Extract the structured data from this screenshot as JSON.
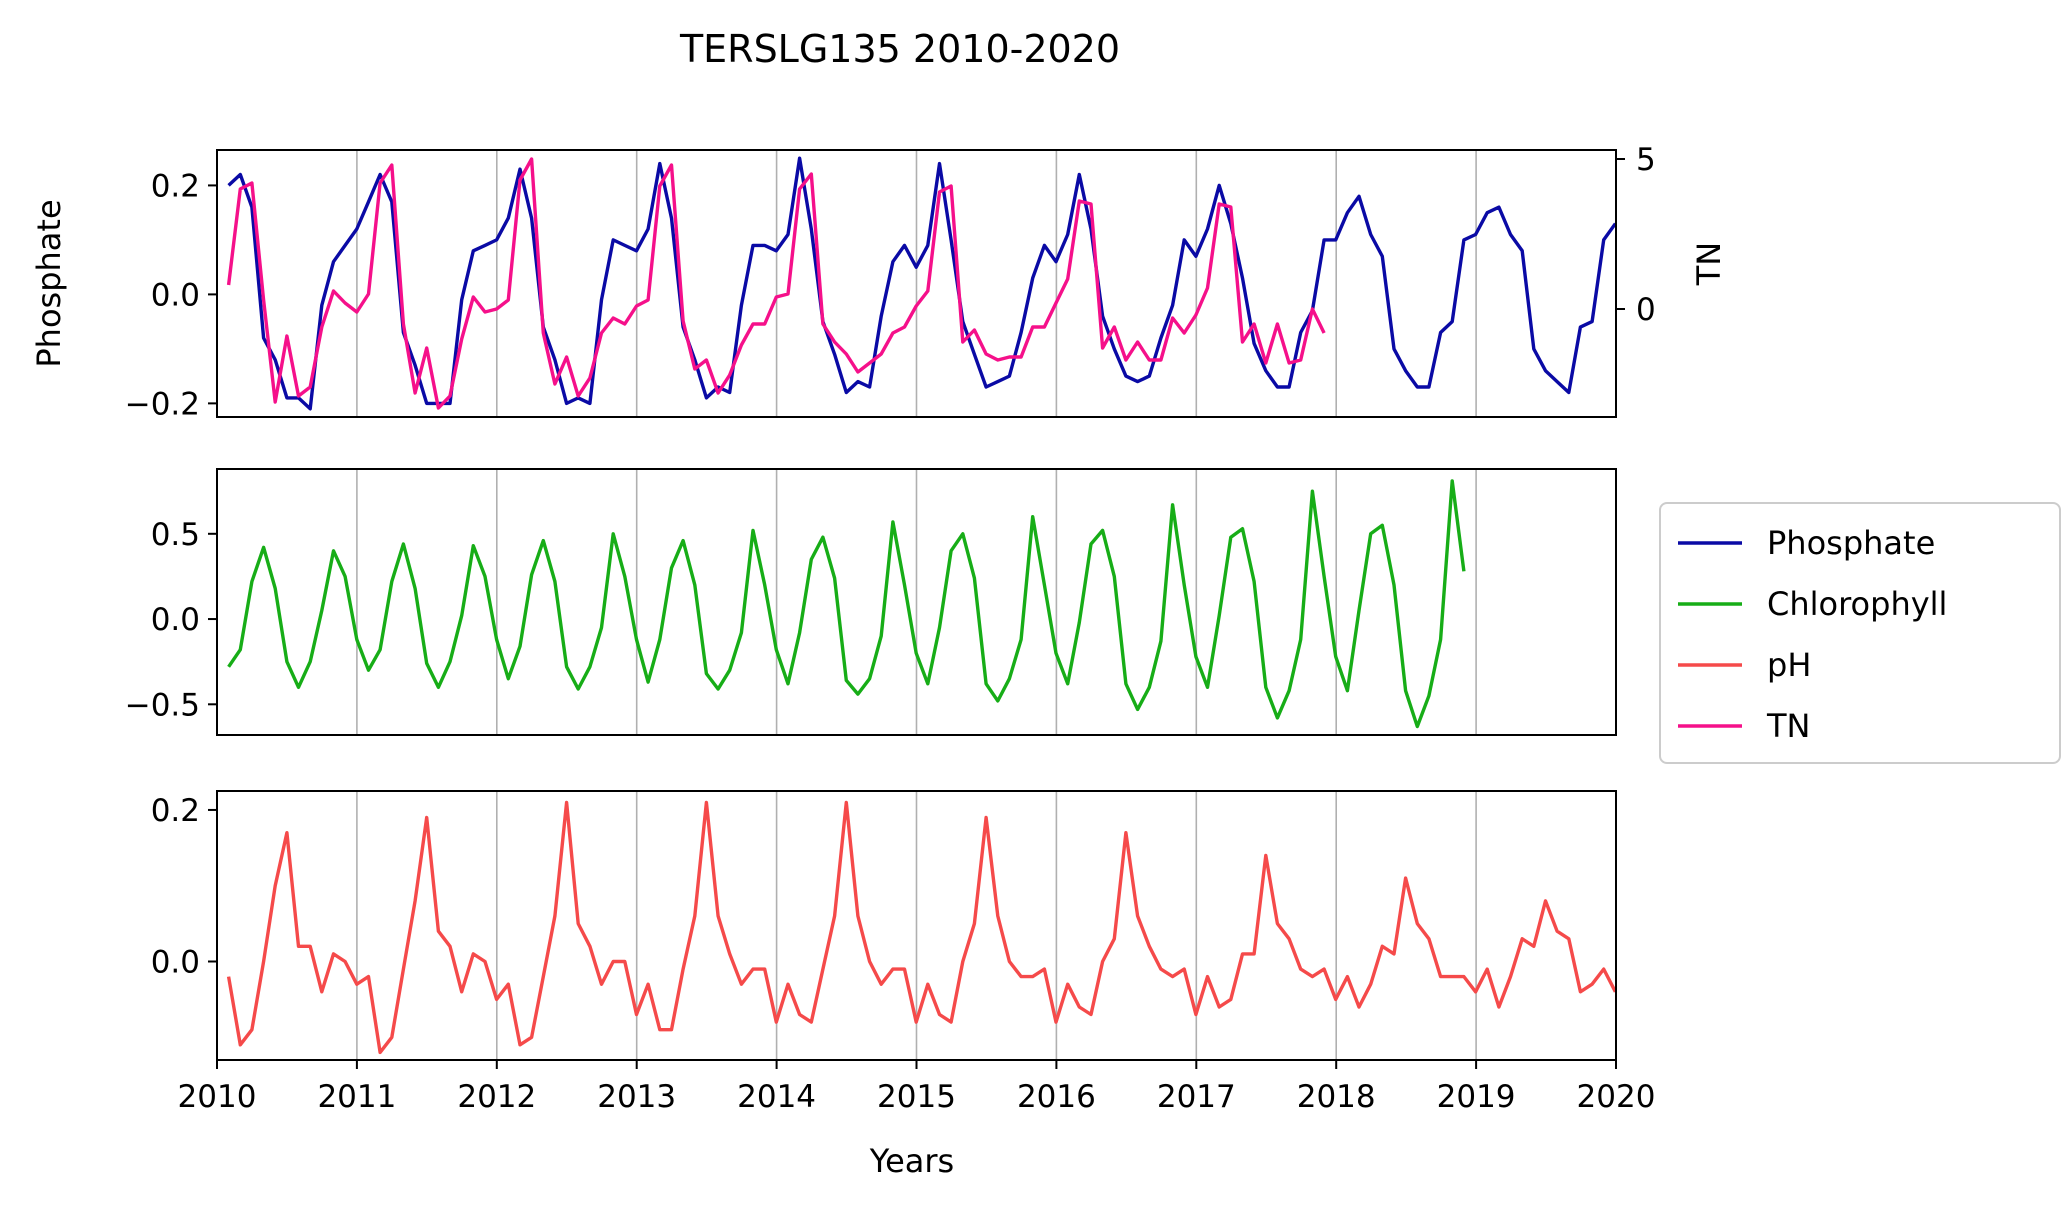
{
  "chart_data": {
    "type": "line",
    "title": "TERSLG135 2010-2020",
    "xlabel": "Years",
    "xlim": [
      2010,
      2020
    ],
    "x_ticks": [
      "2010",
      "2011",
      "2012",
      "2013",
      "2014",
      "2015",
      "2016",
      "2017",
      "2018",
      "2019",
      "2020"
    ],
    "legend": {
      "placement": "right",
      "entries": [
        {
          "label": "Phosphate",
          "color": "#0a0aa5"
        },
        {
          "label": "Chlorophyll",
          "color": "#17ad17"
        },
        {
          "label": "pH",
          "color": "#f54a4a"
        },
        {
          "label": "TN",
          "color": "#f5108a"
        }
      ]
    },
    "panels": [
      {
        "ylabel": "Phosphate",
        "ylim": [
          -0.225,
          0.265
        ],
        "yticks": [
          {
            "v": 0.2,
            "label": "0.2"
          },
          {
            "v": 0.0,
            "label": "0.0"
          },
          {
            "v": -0.2,
            "label": "−0.2"
          }
        ],
        "grid_x": true,
        "secondary_axis": {
          "ylabel": "TN",
          "ylim": [
            -3.6,
            5.3
          ],
          "yticks": [
            {
              "v": 5,
              "label": "5"
            },
            {
              "v": 0,
              "label": "0"
            }
          ]
        },
        "series": [
          {
            "name": "Phosphate",
            "color": "#0a0aa5",
            "axis": "left",
            "x_start": 2010.083,
            "x_step": 0.0833,
            "values": [
              0.2,
              0.22,
              0.16,
              -0.08,
              -0.12,
              -0.19,
              -0.19,
              -0.21,
              -0.02,
              0.06,
              0.09,
              0.12,
              0.17,
              0.22,
              0.17,
              -0.07,
              -0.13,
              -0.2,
              -0.2,
              -0.2,
              -0.01,
              0.08,
              0.09,
              0.1,
              0.14,
              0.23,
              0.14,
              -0.06,
              -0.12,
              -0.2,
              -0.19,
              -0.2,
              -0.01,
              0.1,
              0.09,
              0.08,
              0.12,
              0.24,
              0.14,
              -0.06,
              -0.12,
              -0.19,
              -0.17,
              -0.18,
              -0.02,
              0.09,
              0.09,
              0.08,
              0.11,
              0.25,
              0.12,
              -0.05,
              -0.11,
              -0.18,
              -0.16,
              -0.17,
              -0.04,
              0.06,
              0.09,
              0.05,
              0.09,
              0.24,
              0.1,
              -0.05,
              -0.11,
              -0.17,
              -0.16,
              -0.15,
              -0.07,
              0.03,
              0.09,
              0.06,
              0.11,
              0.22,
              0.12,
              -0.04,
              -0.1,
              -0.15,
              -0.16,
              -0.15,
              -0.08,
              -0.02,
              0.1,
              0.07,
              0.12,
              0.2,
              0.13,
              0.03,
              -0.09,
              -0.14,
              -0.17,
              -0.17,
              -0.07,
              -0.03,
              0.1,
              0.1,
              0.15,
              0.18,
              0.11,
              0.07,
              -0.1,
              -0.14,
              -0.17,
              -0.17,
              -0.07,
              -0.05,
              0.1,
              0.11,
              0.15,
              0.16,
              0.11,
              0.08,
              -0.1,
              -0.14,
              -0.16,
              -0.18,
              -0.06,
              -0.05,
              0.1,
              0.13
            ]
          },
          {
            "name": "TN",
            "color": "#f5108a",
            "axis": "right",
            "x_start": 2010.083,
            "x_step": 0.0833,
            "values": [
              0.8,
              4.0,
              4.2,
              0.3,
              -3.1,
              -0.9,
              -2.9,
              -2.6,
              -0.6,
              0.6,
              0.2,
              -0.1,
              0.5,
              4.2,
              4.8,
              -0.5,
              -2.8,
              -1.3,
              -3.3,
              -2.9,
              -1.0,
              0.4,
              -0.1,
              0.0,
              0.3,
              4.3,
              5.0,
              -0.8,
              -2.5,
              -1.6,
              -2.9,
              -2.3,
              -0.8,
              -0.3,
              -0.5,
              0.1,
              0.3,
              4.1,
              4.8,
              -0.4,
              -2.0,
              -1.7,
              -2.8,
              -2.2,
              -1.2,
              -0.5,
              -0.5,
              0.4,
              0.5,
              4.0,
              4.5,
              -0.5,
              -1.1,
              -1.5,
              -2.1,
              -1.8,
              -1.5,
              -0.8,
              -0.6,
              0.1,
              0.6,
              3.9,
              4.1,
              -1.1,
              -0.7,
              -1.5,
              -1.7,
              -1.6,
              -1.6,
              -0.6,
              -0.6,
              0.2,
              1.0,
              3.6,
              3.5,
              -1.3,
              -0.6,
              -1.7,
              -1.1,
              -1.7,
              -1.7,
              -0.3,
              -0.8,
              -0.2,
              0.7,
              3.5,
              3.4,
              -1.1,
              -0.5,
              -1.8,
              -0.5,
              -1.8,
              -1.7,
              0.0,
              -0.8
            ]
          }
        ]
      },
      {
        "ylabel": "",
        "ylim": [
          -0.68,
          0.88
        ],
        "yticks": [
          {
            "v": 0.5,
            "label": "0.5"
          },
          {
            "v": 0.0,
            "label": "0.0"
          },
          {
            "v": -0.5,
            "label": "−0.5"
          }
        ],
        "grid_x": true,
        "series": [
          {
            "name": "Chlorophyll",
            "color": "#17ad17",
            "axis": "left",
            "x_start": 2010.083,
            "x_step": 0.0833,
            "values": [
              -0.28,
              -0.18,
              0.22,
              0.42,
              0.18,
              -0.25,
              -0.4,
              -0.25,
              0.05,
              0.4,
              0.25,
              -0.12,
              -0.3,
              -0.18,
              0.22,
              0.44,
              0.18,
              -0.26,
              -0.4,
              -0.25,
              0.02,
              0.43,
              0.25,
              -0.12,
              -0.35,
              -0.16,
              0.26,
              0.46,
              0.22,
              -0.28,
              -0.41,
              -0.28,
              -0.05,
              0.5,
              0.25,
              -0.12,
              -0.37,
              -0.12,
              0.3,
              0.46,
              0.2,
              -0.32,
              -0.41,
              -0.3,
              -0.08,
              0.52,
              0.2,
              -0.18,
              -0.38,
              -0.08,
              0.35,
              0.48,
              0.24,
              -0.36,
              -0.44,
              -0.35,
              -0.1,
              0.57,
              0.2,
              -0.2,
              -0.38,
              -0.05,
              0.4,
              0.5,
              0.24,
              -0.38,
              -0.48,
              -0.35,
              -0.12,
              0.6,
              0.2,
              -0.2,
              -0.38,
              -0.02,
              0.44,
              0.52,
              0.25,
              -0.38,
              -0.53,
              -0.4,
              -0.13,
              0.67,
              0.2,
              -0.22,
              -0.4,
              0.02,
              0.48,
              0.53,
              0.22,
              -0.4,
              -0.58,
              -0.42,
              -0.12,
              0.75,
              0.25,
              -0.22,
              -0.42,
              0.05,
              0.5,
              0.55,
              0.2,
              -0.42,
              -0.63,
              -0.45,
              -0.12,
              0.81,
              0.28
            ]
          }
        ]
      },
      {
        "ylabel": "",
        "ylim": [
          -0.13,
          0.225
        ],
        "yticks": [
          {
            "v": 0.2,
            "label": "0.2"
          },
          {
            "v": 0.0,
            "label": "0.0"
          }
        ],
        "grid_x": true,
        "series": [
          {
            "name": "pH",
            "color": "#f54a4a",
            "axis": "left",
            "x_start": 2010.083,
            "x_step": 0.0833,
            "values": [
              -0.02,
              -0.11,
              -0.09,
              0.0,
              0.1,
              0.17,
              0.02,
              0.02,
              -0.04,
              0.01,
              0.0,
              -0.03,
              -0.02,
              -0.12,
              -0.1,
              -0.01,
              0.08,
              0.19,
              0.04,
              0.02,
              -0.04,
              0.01,
              0.0,
              -0.05,
              -0.03,
              -0.11,
              -0.1,
              -0.02,
              0.06,
              0.21,
              0.05,
              0.02,
              -0.03,
              0.0,
              0.0,
              -0.07,
              -0.03,
              -0.09,
              -0.09,
              -0.01,
              0.06,
              0.21,
              0.06,
              0.01,
              -0.03,
              -0.01,
              -0.01,
              -0.08,
              -0.03,
              -0.07,
              -0.08,
              -0.01,
              0.06,
              0.21,
              0.06,
              0.0,
              -0.03,
              -0.01,
              -0.01,
              -0.08,
              -0.03,
              -0.07,
              -0.08,
              0.0,
              0.05,
              0.19,
              0.06,
              0.0,
              -0.02,
              -0.02,
              -0.01,
              -0.08,
              -0.03,
              -0.06,
              -0.07,
              0.0,
              0.03,
              0.17,
              0.06,
              0.02,
              -0.01,
              -0.02,
              -0.01,
              -0.07,
              -0.02,
              -0.06,
              -0.05,
              0.01,
              0.01,
              0.14,
              0.05,
              0.03,
              -0.01,
              -0.02,
              -0.01,
              -0.05,
              -0.02,
              -0.06,
              -0.03,
              0.02,
              0.01,
              0.11,
              0.05,
              0.03,
              -0.02,
              -0.02,
              -0.02,
              -0.04,
              -0.01,
              -0.06,
              -0.02,
              0.03,
              0.02,
              0.08,
              0.04,
              0.03,
              -0.04,
              -0.03,
              -0.01,
              -0.04
            ]
          }
        ]
      }
    ]
  }
}
